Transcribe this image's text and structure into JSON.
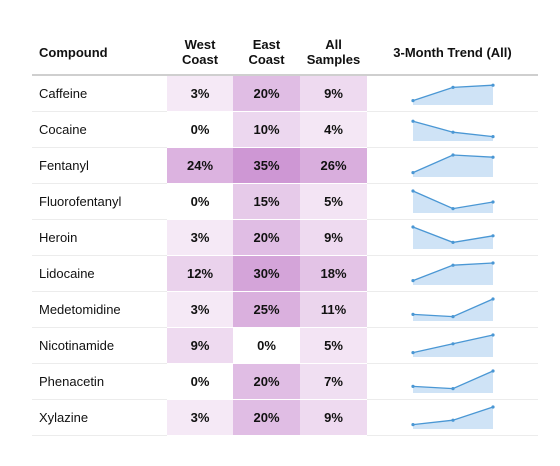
{
  "chart_data": {
    "type": "table",
    "columns": [
      "Compound",
      "West Coast",
      "East Coast",
      "All Samples",
      "3-Month Trend (All)"
    ],
    "rows": [
      {
        "compound": "Caffeine",
        "west": 3,
        "east": 20,
        "all": 9,
        "trend": [
          2,
          8,
          9
        ]
      },
      {
        "compound": "Cocaine",
        "west": 0,
        "east": 10,
        "all": 4,
        "trend": [
          9,
          4,
          2
        ]
      },
      {
        "compound": "Fentanyl",
        "west": 24,
        "east": 35,
        "all": 26,
        "trend": [
          2,
          10,
          9
        ]
      },
      {
        "compound": "Fluorofentanyl",
        "west": 0,
        "east": 15,
        "all": 5,
        "trend": [
          10,
          2,
          5
        ]
      },
      {
        "compound": "Heroin",
        "west": 3,
        "east": 20,
        "all": 9,
        "trend": [
          10,
          3,
          6
        ]
      },
      {
        "compound": "Lidocaine",
        "west": 12,
        "east": 30,
        "all": 18,
        "trend": [
          2,
          9,
          10
        ]
      },
      {
        "compound": "Medetomidine",
        "west": 3,
        "east": 25,
        "all": 11,
        "trend": [
          3,
          2,
          10
        ]
      },
      {
        "compound": "Nicotinamide",
        "west": 9,
        "east": 0,
        "all": 5,
        "trend": [
          2,
          6,
          10
        ]
      },
      {
        "compound": "Phenacetin",
        "west": 0,
        "east": 20,
        "all": 7,
        "trend": [
          3,
          2,
          10
        ]
      },
      {
        "compound": "Xylazine",
        "west": 3,
        "east": 20,
        "all": 9,
        "trend": [
          2,
          4,
          10
        ]
      }
    ]
  },
  "header": {
    "compound": "Compound",
    "west": "West Coast",
    "east": "East Coast",
    "all": "All Samples",
    "trend": "3-Month Trend (All)"
  },
  "colors": {
    "heat_base": "#c98bcf",
    "spark_line": "#4a97d4",
    "spark_fill": "#cfe3f6"
  }
}
